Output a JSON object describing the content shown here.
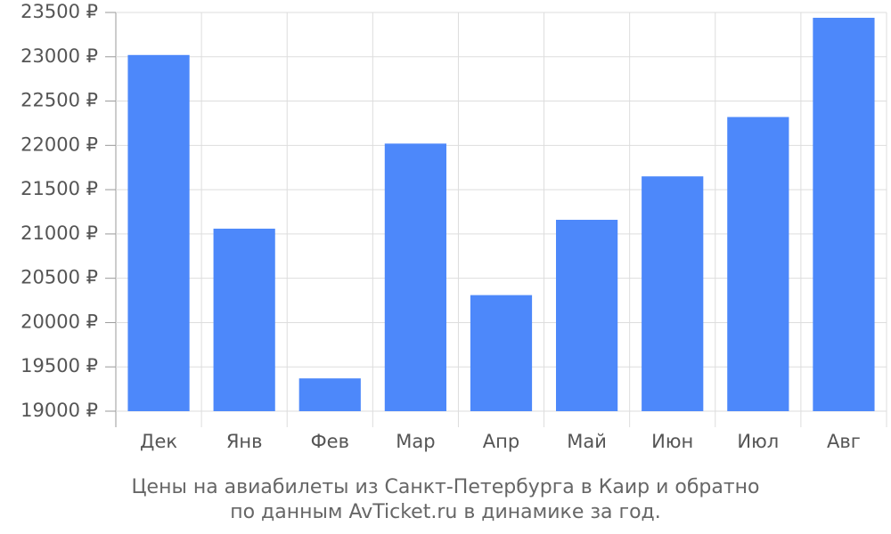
{
  "chart_data": {
    "type": "bar",
    "caption": [
      "Цены на авиабилеты из Санкт-Петербурга в Каир и обратно",
      "по данным AvTicket.ru в динамике за год."
    ],
    "categories": [
      "Дек",
      "Янв",
      "Фев",
      "Мар",
      "Апр",
      "Май",
      "Июн",
      "Июл",
      "Авг"
    ],
    "values": [
      23020,
      21060,
      19370,
      22020,
      20310,
      21160,
      21650,
      22320,
      23440
    ],
    "color": "#4d88fa",
    "ylim": [
      19000,
      23500
    ],
    "yticks": [
      {
        "value": 19000,
        "label": "19000 ₽"
      },
      {
        "value": 19500,
        "label": "19500 ₽"
      },
      {
        "value": 20000,
        "label": "20000 ₽"
      },
      {
        "value": 20500,
        "label": "20500 ₽"
      },
      {
        "value": 21000,
        "label": "21000 ₽"
      },
      {
        "value": 21500,
        "label": "21500 ₽"
      },
      {
        "value": 22000,
        "label": "22000 ₽"
      },
      {
        "value": 22500,
        "label": "22500 ₽"
      },
      {
        "value": 23000,
        "label": "23000 ₽"
      },
      {
        "value": 23500,
        "label": "23500 ₽"
      }
    ],
    "grid": true
  }
}
